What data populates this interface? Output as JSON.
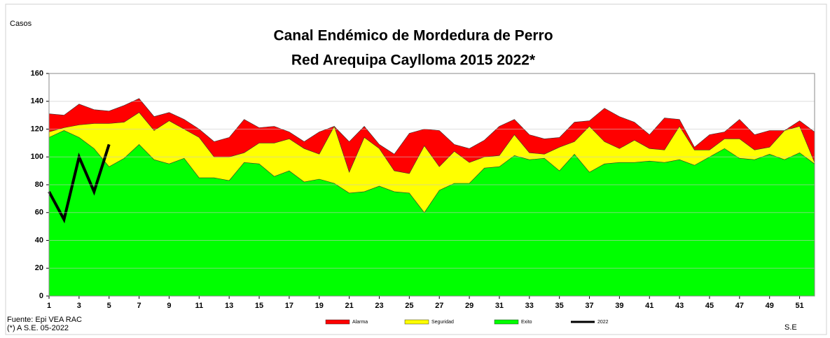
{
  "chart_data": {
    "type": "area",
    "title": "Canal Endémico de Mordedura de Perro",
    "subtitle": "Red Arequipa Caylloma 2015 2022*",
    "y_label": "Casos",
    "x_label": "S.E",
    "source": "Fuente: Epi VEA RAC",
    "note": "(*) A S.E. 05-2022",
    "x": [
      1,
      2,
      3,
      4,
      5,
      6,
      7,
      8,
      9,
      10,
      11,
      12,
      13,
      14,
      15,
      16,
      17,
      18,
      19,
      20,
      21,
      22,
      23,
      24,
      25,
      26,
      27,
      28,
      29,
      30,
      31,
      32,
      33,
      34,
      35,
      36,
      37,
      38,
      39,
      40,
      41,
      42,
      43,
      44,
      45,
      46,
      47,
      48,
      49,
      50,
      51,
      52
    ],
    "xlim": [
      1,
      52
    ],
    "xticks": [
      1,
      3,
      5,
      7,
      9,
      11,
      13,
      15,
      17,
      19,
      21,
      23,
      25,
      27,
      29,
      31,
      33,
      35,
      37,
      39,
      41,
      43,
      45,
      47,
      49,
      51
    ],
    "ylim": [
      0,
      160
    ],
    "yticks": [
      0,
      20,
      40,
      60,
      80,
      100,
      120,
      140,
      160
    ],
    "grid": true,
    "legend": "bottom",
    "series": [
      {
        "name": "Alarma",
        "color": "#ff0000",
        "type": "area",
        "values": [
          131,
          130,
          138,
          134,
          133,
          137,
          142,
          129,
          132,
          127,
          120,
          111,
          114,
          127,
          121,
          122,
          118,
          111,
          118,
          122,
          111,
          122,
          109,
          102,
          117,
          120,
          119,
          109,
          106,
          112,
          122,
          127,
          116,
          113,
          114,
          125,
          126,
          135,
          129,
          125,
          116,
          128,
          127,
          107,
          116,
          118,
          127,
          116,
          119,
          119,
          126,
          118
        ]
      },
      {
        "name": "Seguridad",
        "color": "#ffff00",
        "type": "area",
        "values": [
          118,
          121,
          123,
          124,
          124,
          125,
          132,
          119,
          126,
          120,
          114,
          100,
          100,
          103,
          110,
          110,
          113,
          106,
          102,
          122,
          89,
          114,
          106,
          90,
          88,
          108,
          93,
          104,
          96,
          100,
          101,
          116,
          103,
          102,
          107,
          111,
          122,
          111,
          106,
          112,
          106,
          105,
          122,
          105,
          105,
          113,
          113,
          105,
          107,
          119,
          122,
          96
        ]
      },
      {
        "name": "Exito",
        "color": "#00ff00",
        "type": "area",
        "values": [
          114,
          119,
          114,
          106,
          93,
          99,
          109,
          98,
          95,
          99,
          85,
          85,
          83,
          96,
          95,
          86,
          90,
          82,
          84,
          81,
          74,
          75,
          79,
          75,
          74,
          60,
          76,
          81,
          81,
          92,
          93,
          101,
          98,
          99,
          90,
          102,
          89,
          95,
          96,
          96,
          97,
          96,
          98,
          94,
          100,
          106,
          99,
          98,
          102,
          98,
          103,
          95
        ]
      },
      {
        "name": "2022",
        "color": "#000000",
        "type": "line",
        "values": [
          75,
          55,
          100,
          75,
          109,
          null,
          null,
          null,
          null,
          null,
          null,
          null,
          null,
          null,
          null,
          null,
          null,
          null,
          null,
          null,
          null,
          null,
          null,
          null,
          null,
          null,
          null,
          null,
          null,
          null,
          null,
          null,
          null,
          null,
          null,
          null,
          null,
          null,
          null,
          null,
          null,
          null,
          null,
          null,
          null,
          null,
          null,
          null,
          null,
          null,
          null,
          null
        ]
      }
    ]
  }
}
